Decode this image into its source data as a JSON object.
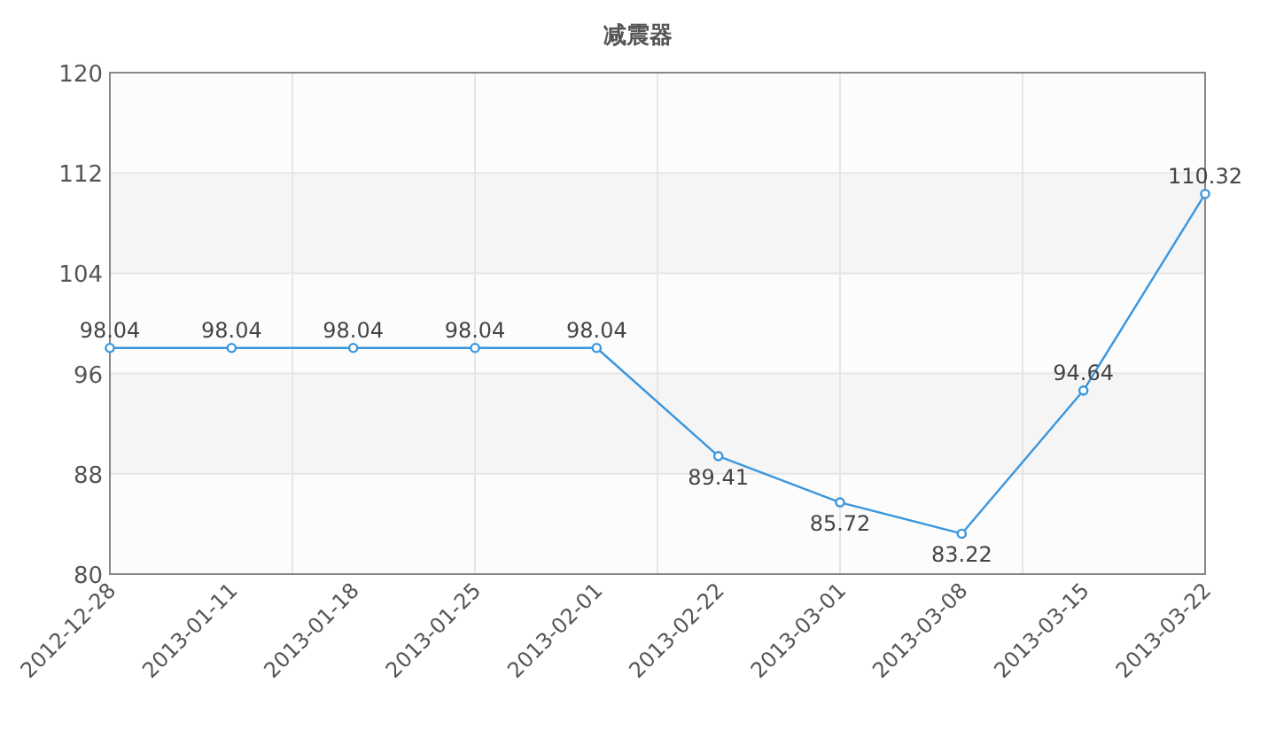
{
  "chart_data": {
    "type": "line",
    "title": "减震器",
    "categories": [
      "2012-12-28",
      "2013-01-11",
      "2013-01-18",
      "2013-01-25",
      "2013-02-01",
      "2013-02-22",
      "2013-03-01",
      "2013-03-08",
      "2013-03-15",
      "2013-03-22"
    ],
    "series": [
      {
        "color": "#3a96dd",
        "values": [
          98.04,
          98.04,
          98.04,
          98.04,
          98.04,
          89.41,
          85.72,
          83.22,
          94.64,
          110.32
        ]
      }
    ],
    "ylim": [
      80,
      120
    ],
    "yticks": [
      80,
      88,
      96,
      104,
      112,
      120
    ],
    "grid": true,
    "marker": "circle",
    "data_labels": true
  }
}
